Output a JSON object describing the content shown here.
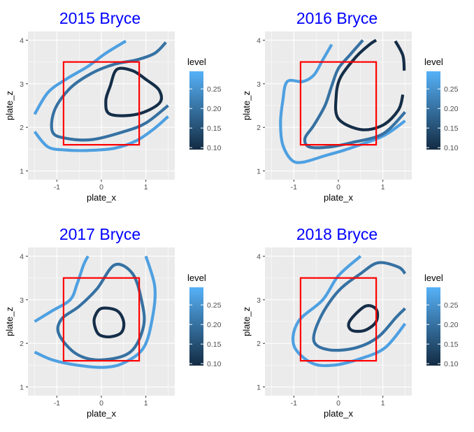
{
  "colors": {
    "panel_background": "#EBEBEB",
    "gridline": "#FFFFFF",
    "title": "#0000FF",
    "strike_zone": "#FF0000",
    "level_low": "#132B43",
    "level_high": "#56B1F7"
  },
  "chart_data": [
    {
      "type": "contour",
      "title": "2015 Bryce",
      "xlabel": "plate_x",
      "ylabel": "plate_z",
      "xlim": [
        -1.65,
        1.65
      ],
      "ylim": [
        0.8,
        4.2
      ],
      "x_ticks": [
        -1,
        0,
        1
      ],
      "y_ticks": [
        1,
        2,
        3,
        4
      ],
      "grid": true,
      "strike_zone": {
        "x": [
          -0.85,
          0.85
        ],
        "z": [
          1.6,
          3.5
        ]
      },
      "legend": {
        "title": "level",
        "position": "right",
        "ticks": [
          0.1,
          0.15,
          0.2,
          0.25
        ],
        "labels": [
          "0.10",
          "0.15",
          "0.20",
          "0.25"
        ],
        "range": [
          0.095,
          0.295
        ]
      },
      "contours": [
        {
          "level": 0.1,
          "closed": true,
          "points": [
            [
              0.35,
              3.33
            ],
            [
              0.7,
              3.3
            ],
            [
              1.0,
              3.1
            ],
            [
              1.3,
              2.85
            ],
            [
              1.3,
              2.55
            ],
            [
              0.8,
              2.3
            ],
            [
              0.2,
              2.3
            ],
            [
              0.1,
              2.6
            ],
            [
              0.2,
              2.95
            ]
          ]
        },
        {
          "level": 0.2,
          "closed": false,
          "points": [
            [
              1.5,
              2.5
            ],
            [
              1.0,
              2.1
            ],
            [
              0.5,
              1.9
            ],
            [
              -0.2,
              1.72
            ],
            [
              -0.8,
              1.75
            ],
            [
              -1.1,
              1.9
            ],
            [
              -1.05,
              2.4
            ],
            [
              -0.7,
              2.9
            ],
            [
              -0.2,
              3.25
            ],
            [
              0.3,
              3.45
            ],
            [
              0.8,
              3.55
            ],
            [
              1.2,
              3.7
            ],
            [
              1.45,
              3.95
            ]
          ]
        },
        {
          "level": 0.27,
          "closed": false,
          "points": [
            [
              -1.5,
              2.3
            ],
            [
              -1.2,
              2.8
            ],
            [
              -0.8,
              3.1
            ],
            [
              -0.3,
              3.4
            ],
            [
              0.1,
              3.7
            ],
            [
              0.55,
              3.98
            ]
          ]
        },
        {
          "level": 0.27,
          "closed": false,
          "points": [
            [
              -1.5,
              1.9
            ],
            [
              -1.2,
              1.55
            ],
            [
              -0.8,
              1.48
            ],
            [
              -0.3,
              1.47
            ],
            [
              0.3,
              1.52
            ],
            [
              0.8,
              1.7
            ],
            [
              1.2,
              1.98
            ],
            [
              1.5,
              2.25
            ]
          ]
        }
      ]
    },
    {
      "type": "contour",
      "title": "2016 Bryce",
      "xlabel": "plate_x",
      "ylabel": "plate_z",
      "xlim": [
        -1.65,
        1.65
      ],
      "ylim": [
        0.8,
        4.2
      ],
      "x_ticks": [
        -1,
        0,
        1
      ],
      "y_ticks": [
        1,
        2,
        3,
        4
      ],
      "grid": true,
      "strike_zone": {
        "x": [
          -0.85,
          0.85
        ],
        "z": [
          1.6,
          3.5
        ]
      },
      "legend": {
        "title": "level",
        "position": "right",
        "ticks": [
          0.1,
          0.15,
          0.2,
          0.25
        ],
        "labels": [
          "0.10",
          "0.15",
          "0.20",
          "0.25"
        ],
        "range": [
          0.095,
          0.295
        ]
      },
      "contours": [
        {
          "level": 0.1,
          "closed": false,
          "points": [
            [
              0.85,
              4.0
            ],
            [
              0.7,
              3.9
            ],
            [
              0.4,
              3.62
            ],
            [
              0.05,
              3.15
            ],
            [
              -0.05,
              2.7
            ],
            [
              0.0,
              2.2
            ],
            [
              0.5,
              1.95
            ],
            [
              1.0,
              2.05
            ],
            [
              1.35,
              2.4
            ],
            [
              1.45,
              2.75
            ]
          ]
        },
        {
          "level": 0.1,
          "closed": false,
          "points": [
            [
              1.28,
              3.98
            ],
            [
              1.45,
              3.65
            ],
            [
              1.48,
              3.3
            ]
          ]
        },
        {
          "level": 0.2,
          "closed": false,
          "points": [
            [
              1.5,
              2.35
            ],
            [
              1.0,
              1.85
            ],
            [
              0.3,
              1.65
            ],
            [
              -0.2,
              1.55
            ],
            [
              -0.65,
              1.55
            ],
            [
              -0.75,
              1.75
            ],
            [
              -0.55,
              2.05
            ],
            [
              -0.3,
              2.5
            ],
            [
              -0.15,
              2.95
            ],
            [
              0.0,
              3.35
            ],
            [
              0.25,
              3.65
            ],
            [
              0.55,
              4.0
            ]
          ]
        },
        {
          "level": 0.27,
          "closed": false,
          "points": [
            [
              1.5,
              2.15
            ],
            [
              1.0,
              1.8
            ],
            [
              0.2,
              1.5
            ],
            [
              -0.3,
              1.35
            ],
            [
              -0.8,
              1.2
            ],
            [
              -1.05,
              1.25
            ],
            [
              -1.25,
              1.6
            ],
            [
              -1.3,
              2.1
            ],
            [
              -1.25,
              2.6
            ],
            [
              -1.15,
              3.05
            ],
            [
              -0.8,
              3.05
            ],
            [
              -0.55,
              3.2
            ],
            [
              -0.35,
              3.55
            ],
            [
              -0.15,
              3.9
            ]
          ]
        }
      ]
    },
    {
      "type": "contour",
      "title": "2017 Bryce",
      "xlabel": "plate_x",
      "ylabel": "plate_z",
      "xlim": [
        -1.65,
        1.65
      ],
      "ylim": [
        0.8,
        4.2
      ],
      "x_ticks": [
        -1,
        0,
        1
      ],
      "y_ticks": [
        1,
        2,
        3,
        4
      ],
      "grid": true,
      "strike_zone": {
        "x": [
          -0.85,
          0.85
        ],
        "z": [
          1.6,
          3.5
        ]
      },
      "legend": {
        "title": "level",
        "position": "right",
        "ticks": [
          0.1,
          0.15,
          0.2,
          0.25
        ],
        "labels": [
          "0.10",
          "0.15",
          "0.20",
          "0.25"
        ],
        "range": [
          0.095,
          0.295
        ]
      },
      "contours": [
        {
          "level": 0.1,
          "closed": true,
          "points": [
            [
              0.0,
              2.8
            ],
            [
              0.35,
              2.75
            ],
            [
              0.5,
              2.5
            ],
            [
              0.45,
              2.25
            ],
            [
              0.2,
              2.15
            ],
            [
              -0.05,
              2.2
            ],
            [
              -0.15,
              2.4
            ],
            [
              -0.15,
              2.6
            ]
          ]
        },
        {
          "level": 0.2,
          "closed": true,
          "points": [
            [
              -0.1,
              3.25
            ],
            [
              0.3,
              3.8
            ],
            [
              0.7,
              3.6
            ],
            [
              0.9,
              3.0
            ],
            [
              0.95,
              2.4
            ],
            [
              0.65,
              1.8
            ],
            [
              0.0,
              1.62
            ],
            [
              -0.55,
              1.75
            ],
            [
              -0.95,
              2.2
            ],
            [
              -0.9,
              2.55
            ],
            [
              -0.5,
              2.85
            ]
          ]
        },
        {
          "level": 0.27,
          "closed": false,
          "points": [
            [
              -1.5,
              2.5
            ],
            [
              -1.1,
              2.75
            ],
            [
              -0.7,
              3.0
            ],
            [
              -0.55,
              3.35
            ],
            [
              -0.4,
              3.8
            ],
            [
              -0.3,
              4.0
            ]
          ]
        },
        {
          "level": 0.27,
          "closed": false,
          "points": [
            [
              -1.5,
              1.8
            ],
            [
              -1.1,
              1.62
            ],
            [
              -0.55,
              1.5
            ],
            [
              0.05,
              1.45
            ],
            [
              0.5,
              1.55
            ],
            [
              0.95,
              1.9
            ],
            [
              1.15,
              2.6
            ],
            [
              1.2,
              3.3
            ],
            [
              1.0,
              4.0
            ]
          ]
        }
      ]
    },
    {
      "type": "contour",
      "title": "2018 Bryce",
      "xlabel": "plate_x",
      "ylabel": "plate_z",
      "xlim": [
        -1.65,
        1.65
      ],
      "ylim": [
        0.8,
        4.2
      ],
      "x_ticks": [
        -1,
        0,
        1
      ],
      "y_ticks": [
        1,
        2,
        3,
        4
      ],
      "grid": true,
      "strike_zone": {
        "x": [
          -0.85,
          0.85
        ],
        "z": [
          1.6,
          3.5
        ]
      },
      "legend": {
        "title": "level",
        "position": "right",
        "ticks": [
          0.1,
          0.15,
          0.2,
          0.25
        ],
        "labels": [
          "0.10",
          "0.15",
          "0.20",
          "0.25"
        ],
        "range": [
          0.095,
          0.295
        ]
      },
      "contours": [
        {
          "level": 0.1,
          "closed": true,
          "points": [
            [
              0.25,
              2.5
            ],
            [
              0.6,
              2.85
            ],
            [
              0.85,
              2.78
            ],
            [
              0.85,
              2.5
            ],
            [
              0.6,
              2.3
            ],
            [
              0.3,
              2.3
            ]
          ]
        },
        {
          "level": 0.2,
          "closed": false,
          "points": [
            [
              1.5,
              3.6
            ],
            [
              1.35,
              3.75
            ],
            [
              0.9,
              3.85
            ],
            [
              0.5,
              3.6
            ],
            [
              0.0,
              3.2
            ],
            [
              -0.4,
              2.6
            ],
            [
              -0.55,
              2.05
            ],
            [
              -0.2,
              1.85
            ],
            [
              0.4,
              1.9
            ],
            [
              0.9,
              2.15
            ],
            [
              1.3,
              2.6
            ],
            [
              1.5,
              2.8
            ]
          ]
        },
        {
          "level": 0.27,
          "closed": false,
          "points": [
            [
              0.5,
              4.0
            ],
            [
              0.0,
              3.55
            ],
            [
              -0.35,
              3.0
            ],
            [
              -0.9,
              2.5
            ],
            [
              -1.0,
              1.95
            ],
            [
              -0.6,
              1.55
            ],
            [
              -0.1,
              1.5
            ],
            [
              0.5,
              1.65
            ],
            [
              1.05,
              1.9
            ],
            [
              1.5,
              2.45
            ]
          ]
        }
      ]
    }
  ]
}
